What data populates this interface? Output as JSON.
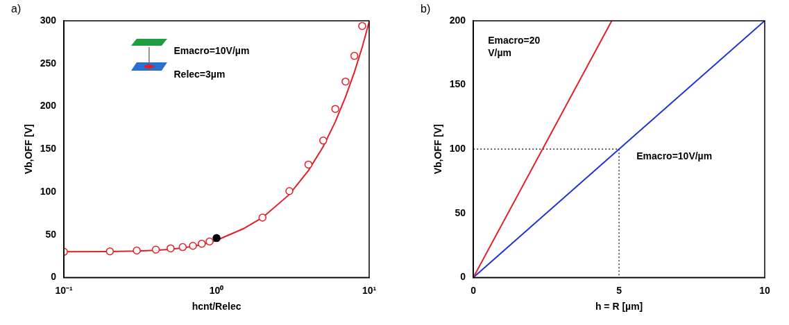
{
  "chart_data": [
    {
      "type": "scatter",
      "panel_label": "a)",
      "x_label": "hcnt/Relec",
      "y_label": "Vb,OFF [V]",
      "annotations": [
        "Emacro=10V/µm",
        "Relec=3µm"
      ],
      "log": "x",
      "grid": false,
      "xlim": [
        0.1,
        10
      ],
      "xticks": [
        {
          "value": 0.1,
          "label": "10⁻¹"
        },
        {
          "value": 1,
          "label": "10⁰"
        },
        {
          "value": 10,
          "label": "10¹"
        }
      ],
      "ylim": [
        0,
        300
      ],
      "yticks": [
        0,
        50,
        100,
        150,
        200,
        250,
        300
      ],
      "series": [
        {
          "type": "scatter",
          "color": "#e41e26",
          "marker": "open_circle",
          "x": [
            0.1,
            0.2,
            0.3,
            0.4,
            0.5,
            0.6,
            0.7,
            0.8,
            0.9,
            2,
            3,
            4,
            5,
            6,
            7,
            8,
            9
          ],
          "values": [
            30,
            30.5,
            31.5,
            32.5,
            34,
            35.5,
            37,
            39.5,
            42,
            70,
            101,
            132,
            160,
            197,
            229,
            259,
            294
          ]
        },
        {
          "type": "scatter",
          "color": "#000000",
          "marker": "filled_circle",
          "x": [
            1
          ],
          "values": [
            46
          ]
        },
        {
          "type": "line",
          "color": "#e41e26",
          "marker": "none",
          "line_style": "solid",
          "x": [
            0.1,
            0.2,
            0.3,
            0.4,
            0.5,
            0.6,
            0.7,
            0.8,
            0.9,
            1,
            1.5,
            2,
            3,
            4,
            5,
            6,
            7,
            8,
            9,
            10
          ],
          "values": [
            30,
            30.2,
            30.8,
            31.8,
            33,
            34.5,
            36.3,
            38.4,
            40.8,
            43.5,
            57,
            70,
            97,
            125,
            153,
            182,
            211,
            240,
            269,
            299
          ]
        }
      ]
    },
    {
      "type": "line",
      "panel_label": "b)",
      "x_label": "h = R [µm]",
      "y_label": "Vb,OFF [V]",
      "annotations": [
        "Emacro=20 V/µm",
        "Emacro=10V/µm"
      ],
      "grid": false,
      "xlim": [
        0,
        10
      ],
      "xticks": [
        0,
        5,
        10
      ],
      "ylim": [
        0,
        200
      ],
      "yticks": [
        0,
        50,
        100,
        150,
        200
      ],
      "series": [
        {
          "type": "line",
          "color": "#e41e26",
          "marker": "none",
          "line_style": "solid",
          "x": [
            0,
            4.75
          ],
          "values": [
            0,
            200
          ]
        },
        {
          "type": "line",
          "color": "#1f2fd6",
          "marker": "none",
          "line_style": "solid",
          "x": [
            0,
            10
          ],
          "values": [
            0,
            200
          ]
        },
        {
          "type": "line",
          "color": "#000000",
          "marker": "none",
          "line_style": "dotted",
          "x": [
            0,
            5,
            5
          ],
          "values": [
            100,
            100,
            0
          ]
        }
      ]
    }
  ]
}
